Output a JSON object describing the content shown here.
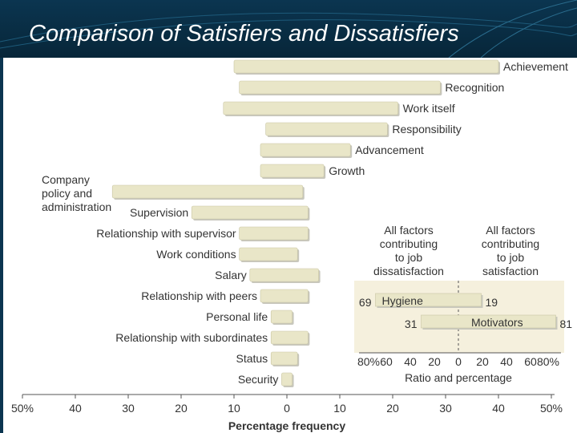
{
  "title": "Comparison of Satisfiers and Dissatisfiers",
  "chart_data": {
    "type": "bar",
    "orientation": "horizontal-diverging",
    "xlabel": "Percentage frequency",
    "xticks": [
      "50%",
      "40",
      "30",
      "20",
      "10",
      "0",
      "10",
      "20",
      "30",
      "40",
      "50%"
    ],
    "xlim": [
      -50,
      50
    ],
    "categories": [
      "Achievement",
      "Recognition",
      "Work itself",
      "Responsibility",
      "Advancement",
      "Growth",
      "Company policy and administration",
      "Supervision",
      "Relationship with supervisor",
      "Work conditions",
      "Salary",
      "Relationship with peers",
      "Personal life",
      "Relationship with subordinates",
      "Status",
      "Security"
    ],
    "series": [
      {
        "values_left": [
          10,
          9,
          12,
          4,
          5,
          5,
          33,
          18,
          9,
          9,
          7,
          5,
          3,
          3,
          3,
          1
        ],
        "values_right": [
          40,
          29,
          21,
          19,
          12,
          7,
          3,
          4,
          4,
          2,
          6,
          4,
          1,
          4,
          2,
          1
        ]
      }
    ],
    "inset": {
      "left_header": "All factors contributing to job dissatisfaction",
      "right_header": "All factors contributing to job satisfaction",
      "rows": [
        {
          "label": "Hygiene",
          "left": 69,
          "right": 19
        },
        {
          "label": "Motivators",
          "left": 31,
          "right": 81
        }
      ],
      "xticks": [
        "80%",
        "60",
        "40",
        "20",
        "0",
        "20",
        "40",
        "60",
        "80%"
      ],
      "xlim": [
        -80,
        80
      ],
      "xlabel": "Ratio and percentage"
    }
  }
}
